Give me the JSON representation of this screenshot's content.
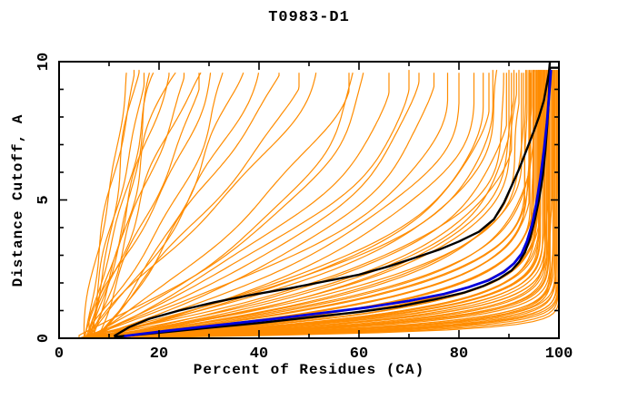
{
  "title": "T0983-D1",
  "axes": {
    "x_label": "Percent of Residues (CA)",
    "y_label": "Distance Cutoff, A"
  },
  "chart_data": {
    "type": "line",
    "title": "T0983-D1",
    "xlabel": "Percent of Residues (CA)",
    "ylabel": "Distance Cutoff, A",
    "xlim": [
      0,
      100
    ],
    "ylim": [
      0,
      10
    ],
    "x_major_ticks": [
      0,
      20,
      40,
      60,
      80,
      100
    ],
    "x_minor_ticks": [
      10,
      30,
      50,
      70,
      90
    ],
    "y_major_ticks": [
      0,
      5,
      10
    ],
    "y_minor_ticks": [
      1,
      2,
      3,
      4,
      6,
      7,
      8,
      9
    ],
    "x_tick_labels": [
      "0",
      "20",
      "40",
      "60",
      "80",
      "100"
    ],
    "y_tick_labels": [
      "0",
      "5",
      "10"
    ],
    "grid": false,
    "legend": false,
    "colors": {
      "predictions": "#ff8c00",
      "notable": "#000000",
      "highlight": "#0000dd",
      "axis": "#000000",
      "background": "#ffffff"
    },
    "max_cutoff_plotted": 9.7,
    "notable_series": [
      {
        "name": "model-black-upper",
        "color": "notable",
        "width": 2.4,
        "points": [
          [
            11,
            0.08
          ],
          [
            14,
            0.4
          ],
          [
            18,
            0.7
          ],
          [
            24,
            1.0
          ],
          [
            31,
            1.3
          ],
          [
            38,
            1.55
          ],
          [
            46,
            1.8
          ],
          [
            53,
            2.05
          ],
          [
            60,
            2.3
          ],
          [
            66,
            2.6
          ],
          [
            71,
            2.9
          ],
          [
            76,
            3.2
          ],
          [
            80,
            3.5
          ],
          [
            84,
            3.85
          ],
          [
            87,
            4.3
          ],
          [
            89,
            4.9
          ],
          [
            90.5,
            5.5
          ],
          [
            92,
            6.1
          ],
          [
            93.5,
            6.8
          ],
          [
            95,
            7.5
          ],
          [
            96,
            8.0
          ],
          [
            97,
            8.6
          ],
          [
            97.6,
            9.2
          ],
          [
            98.0,
            9.6
          ],
          [
            98.2,
            10.0
          ]
        ]
      },
      {
        "name": "model-black-lower",
        "color": "notable",
        "width": 2.4,
        "points": [
          [
            11,
            0.05
          ],
          [
            20,
            0.2
          ],
          [
            30,
            0.38
          ],
          [
            40,
            0.55
          ],
          [
            50,
            0.75
          ],
          [
            60,
            0.95
          ],
          [
            68,
            1.15
          ],
          [
            75,
            1.4
          ],
          [
            81,
            1.65
          ],
          [
            85,
            1.9
          ],
          [
            88,
            2.15
          ],
          [
            90.5,
            2.45
          ],
          [
            92,
            2.75
          ],
          [
            93.2,
            3.1
          ],
          [
            94.2,
            3.6
          ],
          [
            95.2,
            4.3
          ],
          [
            96,
            5.0
          ],
          [
            96.8,
            5.9
          ],
          [
            97.3,
            6.8
          ],
          [
            97.7,
            7.8
          ],
          [
            98.0,
            8.8
          ],
          [
            98.1,
            9.3
          ],
          [
            98.2,
            9.78
          ],
          [
            100,
            9.78
          ]
        ]
      },
      {
        "name": "model-blue",
        "color": "highlight",
        "width": 2.8,
        "points": [
          [
            13,
            0.08
          ],
          [
            22,
            0.28
          ],
          [
            32,
            0.48
          ],
          [
            42,
            0.68
          ],
          [
            52,
            0.9
          ],
          [
            62,
            1.12
          ],
          [
            70,
            1.35
          ],
          [
            77,
            1.6
          ],
          [
            82,
            1.85
          ],
          [
            86,
            2.1
          ],
          [
            89,
            2.4
          ],
          [
            91,
            2.7
          ],
          [
            92.5,
            3.05
          ],
          [
            93.6,
            3.5
          ],
          [
            94.6,
            4.1
          ],
          [
            95.5,
            4.9
          ],
          [
            96.3,
            5.8
          ],
          [
            97.0,
            6.8
          ],
          [
            97.6,
            7.8
          ],
          [
            98.0,
            8.7
          ],
          [
            98.3,
            9.4
          ],
          [
            98.4,
            9.7
          ]
        ]
      }
    ],
    "prediction_series": {
      "count": 88,
      "color": "predictions",
      "width": 1.2,
      "curve_format": "[start_pct, final_pct_at_cutoff_9.7, shape_exponent, wiggle_amplitude_pct, phase]",
      "curves": [
        [
          5,
          99.5,
          26,
          0.4,
          1
        ],
        [
          6,
          99.0,
          22,
          0.5,
          2
        ],
        [
          4,
          98.5,
          18,
          0.5,
          3
        ],
        [
          7,
          98.8,
          24,
          0.4,
          4
        ],
        [
          5,
          97.5,
          15,
          0.6,
          5
        ],
        [
          6,
          98.2,
          20,
          0.5,
          6
        ],
        [
          8,
          99.2,
          28,
          0.3,
          7
        ],
        [
          4,
          96.5,
          12,
          0.6,
          8
        ],
        [
          5,
          97.8,
          16,
          0.5,
          9
        ],
        [
          6,
          96.0,
          10,
          0.7,
          10
        ],
        [
          7,
          97.2,
          14,
          0.5,
          11
        ],
        [
          5,
          98.0,
          19,
          0.4,
          12
        ],
        [
          4,
          95.5,
          9,
          0.7,
          13
        ],
        [
          6,
          96.8,
          12,
          0.6,
          14
        ],
        [
          8,
          98.6,
          22,
          0.4,
          15
        ],
        [
          5,
          95.0,
          8,
          0.8,
          16
        ],
        [
          7,
          96.3,
          11,
          0.6,
          17
        ],
        [
          6,
          97.0,
          13,
          0.5,
          18
        ],
        [
          4,
          94.5,
          8,
          0.8,
          19
        ],
        [
          5,
          96.6,
          12,
          0.5,
          20
        ],
        [
          9,
          99.6,
          30,
          0.3,
          21
        ],
        [
          6,
          95.8,
          10,
          0.6,
          22
        ],
        [
          7,
          97.6,
          17,
          0.4,
          23
        ],
        [
          5,
          94.0,
          7,
          0.8,
          24
        ],
        [
          6,
          95.3,
          9,
          0.7,
          25
        ],
        [
          4,
          97.3,
          15,
          0.5,
          26
        ],
        [
          8,
          96.1,
          11,
          0.5,
          27
        ],
        [
          5,
          98.9,
          25,
          0.3,
          28
        ],
        [
          7,
          95.6,
          9,
          0.6,
          29
        ],
        [
          6,
          94.8,
          8,
          0.7,
          30
        ],
        [
          5,
          93.5,
          7,
          0.9,
          31
        ],
        [
          4,
          96.9,
          13,
          0.5,
          32
        ],
        [
          6,
          99.8,
          32,
          0.3,
          33
        ],
        [
          7,
          94.2,
          7,
          0.8,
          34
        ],
        [
          5,
          95.9,
          10,
          0.6,
          35
        ],
        [
          8,
          97.9,
          18,
          0.4,
          36
        ],
        [
          6,
          93.8,
          6,
          0.9,
          37
        ],
        [
          4,
          95.1,
          9,
          0.7,
          38
        ],
        [
          7,
          99.3,
          24,
          0.3,
          39
        ],
        [
          5,
          96.4,
          11,
          0.5,
          40
        ],
        [
          6,
          100,
          40,
          0.2,
          41
        ],
        [
          7,
          100,
          35,
          0.2,
          42
        ],
        [
          5,
          99.9,
          30,
          0.2,
          43
        ],
        [
          8,
          100,
          45,
          0.2,
          44
        ],
        [
          5,
          92,
          5,
          1.0,
          45
        ],
        [
          6,
          90,
          4,
          1.0,
          46
        ],
        [
          7,
          94,
          5.5,
          0.9,
          47
        ],
        [
          4,
          89,
          3.5,
          1.1,
          48
        ],
        [
          6,
          93,
          4.5,
          0.9,
          49
        ],
        [
          5,
          88,
          3,
          1.1,
          50
        ],
        [
          8,
          91,
          4,
          1.0,
          51
        ],
        [
          6,
          95,
          6,
          0.8,
          52
        ],
        [
          5,
          90.5,
          3.8,
          1.0,
          53
        ],
        [
          7,
          92.5,
          4.8,
          0.9,
          54
        ],
        [
          4,
          87,
          3,
          1.2,
          55
        ],
        [
          6,
          94.5,
          5.2,
          0.8,
          56
        ],
        [
          5,
          91.5,
          4.2,
          1.0,
          57
        ],
        [
          7,
          89.5,
          3.4,
          1.1,
          58
        ],
        [
          6,
          80,
          2.5,
          1.3,
          59
        ],
        [
          5,
          70,
          2,
          1.4,
          60
        ],
        [
          7,
          85,
          2.8,
          1.2,
          61
        ],
        [
          4,
          62,
          1.8,
          1.5,
          62
        ],
        [
          6,
          75,
          2.2,
          1.3,
          63
        ],
        [
          5,
          58,
          1.6,
          1.5,
          64
        ],
        [
          8,
          83,
          2.6,
          1.2,
          65
        ],
        [
          6,
          66,
          1.9,
          1.4,
          66
        ],
        [
          5,
          78,
          2.3,
          1.3,
          67
        ],
        [
          7,
          60,
          1.7,
          1.5,
          68
        ],
        [
          4,
          72,
          2.1,
          1.3,
          69
        ],
        [
          6,
          86,
          2.9,
          1.1,
          70
        ],
        [
          5,
          15,
          1.0,
          0.8,
          71
        ],
        [
          6,
          17,
          1.05,
          0.9,
          72
        ],
        [
          5,
          14,
          0.95,
          0.8,
          73
        ],
        [
          7,
          19,
          1.1,
          1.0,
          74
        ],
        [
          6,
          16,
          1.0,
          0.9,
          75
        ],
        [
          5,
          22,
          1.1,
          1.2,
          76
        ],
        [
          6,
          25,
          1.15,
          1.2,
          77
        ],
        [
          7,
          28,
          1.2,
          1.3,
          78
        ],
        [
          5,
          31,
          1.1,
          1.4,
          79
        ],
        [
          6,
          34,
          1.25,
          1.4,
          80
        ],
        [
          8,
          37,
          1.2,
          1.5,
          81
        ],
        [
          5,
          40,
          1.3,
          1.5,
          82
        ],
        [
          7,
          44,
          1.15,
          1.6,
          83
        ],
        [
          6,
          48,
          1.3,
          1.6,
          84
        ],
        [
          5,
          52,
          1.2,
          1.7,
          85
        ],
        [
          6,
          20,
          0.85,
          1.1,
          86
        ],
        [
          7,
          24,
          0.75,
          1.3,
          87
        ],
        [
          5,
          29,
          0.9,
          1.4,
          88
        ]
      ]
    }
  }
}
